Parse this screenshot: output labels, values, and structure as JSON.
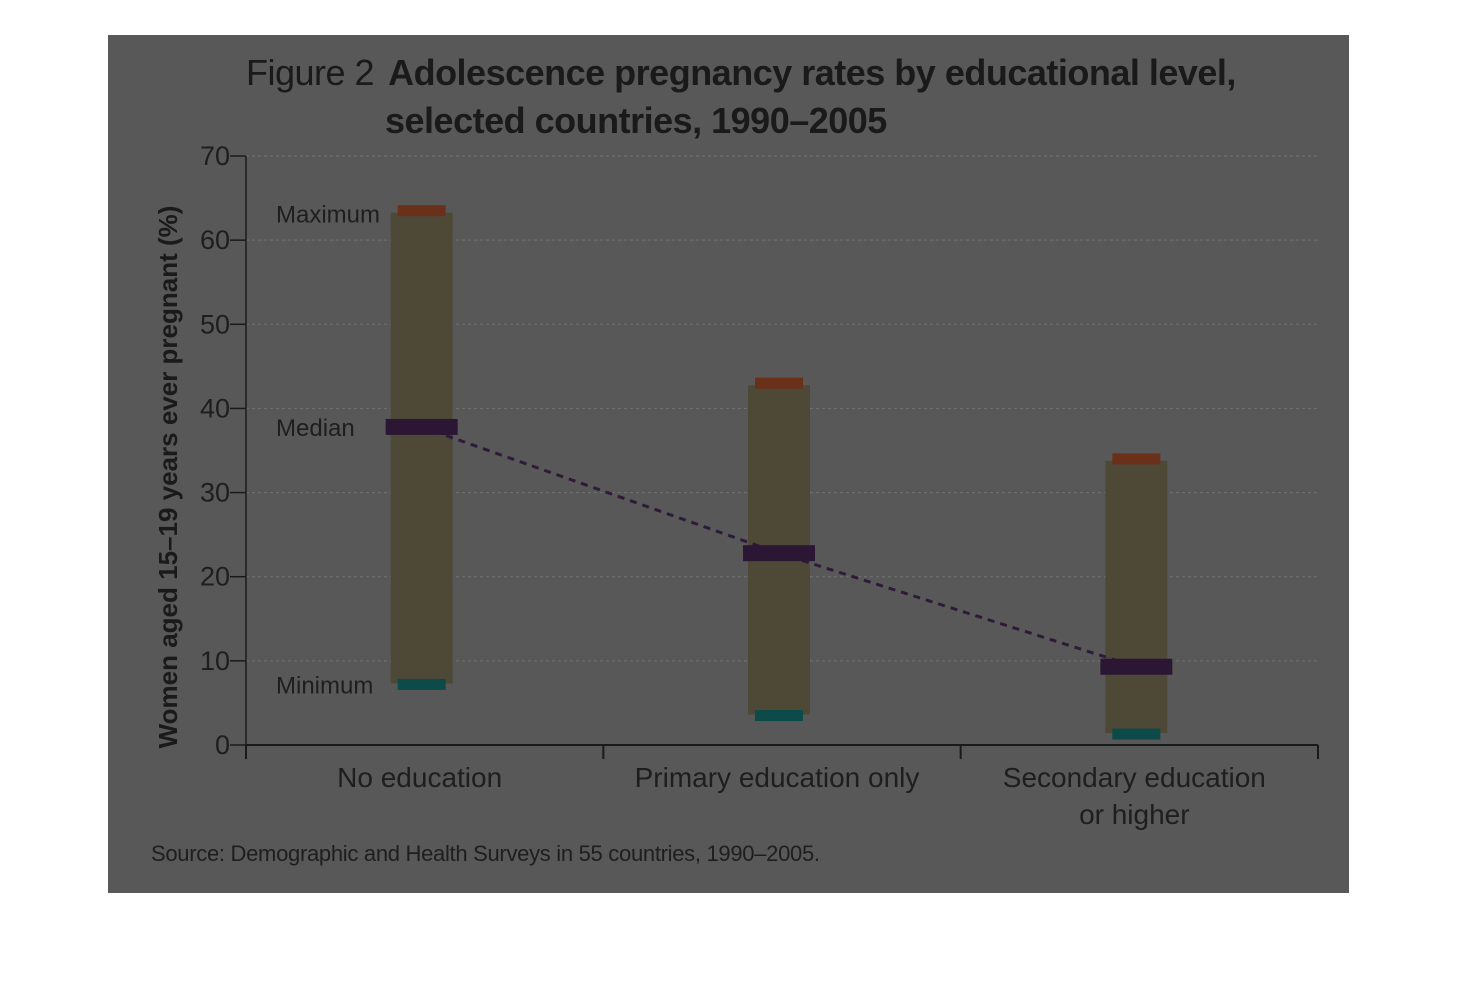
{
  "figure": {
    "label": "Figure 2",
    "title_line1": "Adolescence pregnancy rates by educational level,",
    "title_line2": "selected countries, 1990–2005",
    "source": "Source: Demographic and Health Surveys in 55 countries, 1990–2005."
  },
  "chart_data": {
    "type": "bar",
    "title": "Adolescence pregnancy rates by educational level, selected countries, 1990–2005",
    "ylabel": "Women aged 15–19 years ever pregnant (%)",
    "xlabel": "",
    "ylim": [
      0,
      70
    ],
    "yticks": [
      0,
      10,
      20,
      30,
      40,
      50,
      60,
      70
    ],
    "grid": true,
    "categories": [
      "No education",
      "Primary education only",
      "Secondary education or higher"
    ],
    "category_lines": [
      [
        "No education"
      ],
      [
        "Primary education only"
      ],
      [
        "Secondary education",
        "or higher"
      ]
    ],
    "series": [
      {
        "name": "Maximum",
        "values": [
          63.5,
          43.0,
          34.0
        ]
      },
      {
        "name": "Median",
        "values": [
          37.8,
          22.8,
          9.3
        ]
      },
      {
        "name": "Minimum",
        "values": [
          7.2,
          3.5,
          1.3
        ]
      }
    ],
    "annotations": [
      "Maximum",
      "Median",
      "Minimum"
    ],
    "colors": {
      "range_bar": "#4d4936",
      "maximum": "#6b3019",
      "median": "#2b1733",
      "minimum": "#0d4a4a",
      "trend_line": "#2f1a3a"
    }
  }
}
